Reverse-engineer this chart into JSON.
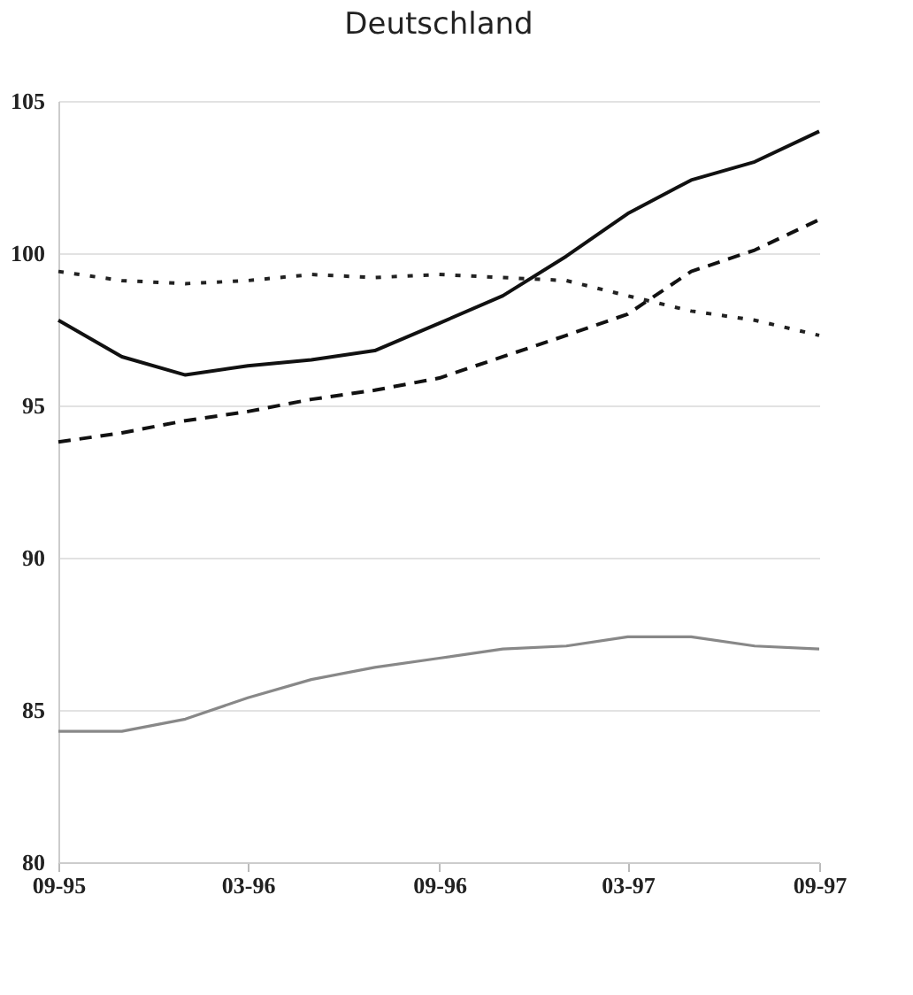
{
  "chart_data": {
    "type": "line",
    "title": "Deutschland",
    "x": [
      "1995-09",
      "1995-11",
      "1996-01",
      "1996-03",
      "1996-05",
      "1996-07",
      "1996-09",
      "1996-11",
      "1997-01",
      "1997-03",
      "1997-05",
      "1997-07",
      "1997-09"
    ],
    "series": [
      {
        "color": "#111111",
        "line_style": "solid",
        "values": [
          97.8,
          96.6,
          96.0,
          96.3,
          96.5,
          96.8,
          97.7,
          98.6,
          99.9,
          101.3,
          102.4,
          103.0,
          104.0
        ]
      },
      {
        "color": "#111111",
        "line_style": "dashed",
        "values": [
          93.8,
          94.1,
          94.5,
          94.8,
          95.2,
          95.5,
          95.9,
          96.6,
          97.3,
          98.0,
          99.4,
          100.1,
          101.1
        ]
      },
      {
        "color": "#222222",
        "line_style": "dotted",
        "values": [
          99.4,
          99.1,
          99.0,
          99.1,
          99.3,
          99.2,
          99.3,
          99.2,
          99.1,
          98.6,
          98.1,
          97.8,
          97.3
        ]
      },
      {
        "color": "#888888",
        "line_style": "solid",
        "values": [
          84.3,
          84.3,
          84.7,
          85.4,
          86.0,
          86.4,
          86.7,
          87.0,
          87.1,
          87.4,
          87.4,
          87.1,
          87.0
        ]
      }
    ],
    "xlim": [
      "1995-09",
      "1997-09"
    ],
    "xticks": [
      {
        "value": "1995-09",
        "label": "09-95"
      },
      {
        "value": "1996-03",
        "label": "03-96"
      },
      {
        "value": "1996-09",
        "label": "09-96"
      },
      {
        "value": "1997-03",
        "label": "03-97"
      },
      {
        "value": "1997-09",
        "label": "09-97"
      }
    ],
    "ylim": [
      80,
      105
    ],
    "yticks": [
      80,
      85,
      90,
      95,
      100,
      105
    ],
    "grid": "y",
    "marker": "none"
  }
}
